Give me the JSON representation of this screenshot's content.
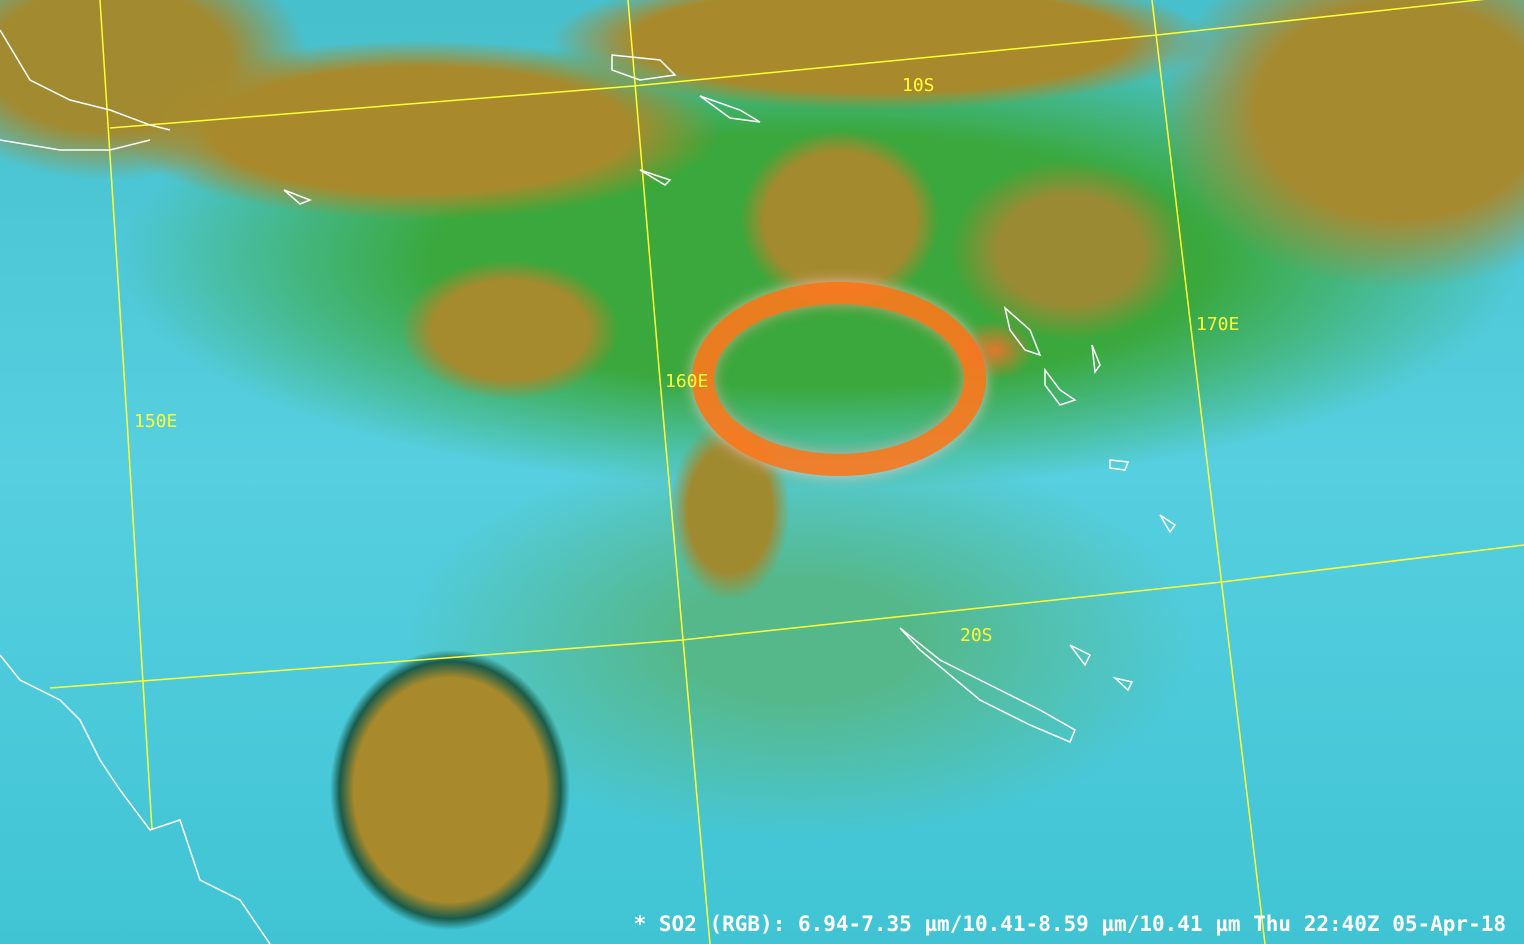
{
  "caption": "* SO2 (RGB): 6.94-7.35 µm/10.41-8.59 µm/10.41 µm Thu 22:40Z 05-Apr-18",
  "grid_labels": {
    "lat_10s": "10S",
    "lat_20s": "20S",
    "lon_150e": "150E",
    "lon_160e": "160E",
    "lon_170e": "170E"
  },
  "colors": {
    "grid": "#ffff33",
    "coastline": "#ffffff",
    "so2_plume": "#ff7a1e",
    "clear_sky": "#4cc8dc",
    "high_cloud": "#a88a2c"
  }
}
